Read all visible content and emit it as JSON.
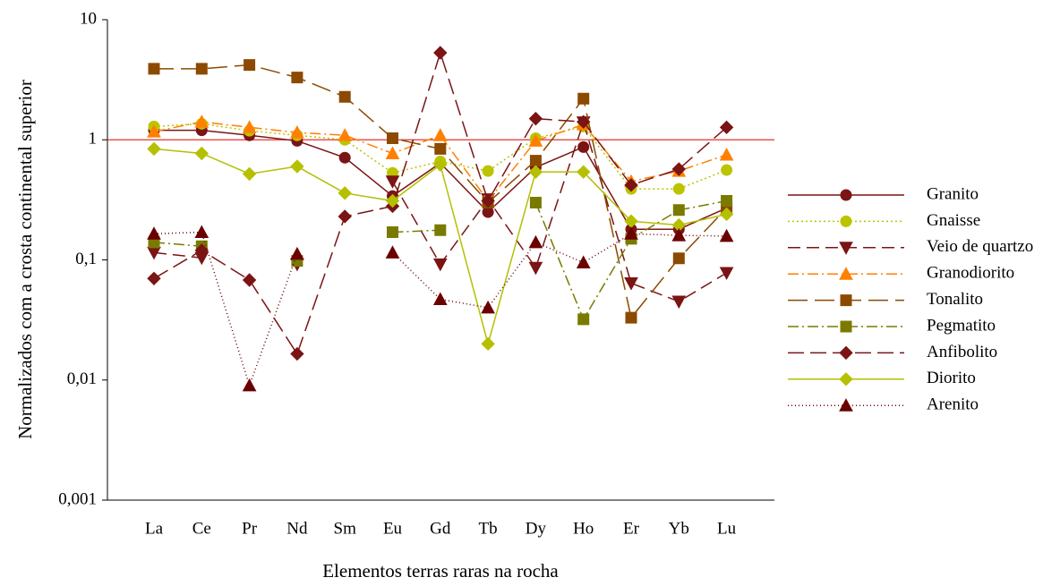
{
  "chart_data": {
    "type": "line",
    "xlabel": "Elementos terras raras na rocha",
    "ylabel": "Normalizados com a crosta continental superior",
    "categories": [
      "La",
      "Ce",
      "Pr",
      "Nd",
      "Sm",
      "Eu",
      "Gd",
      "Tb",
      "Dy",
      "Ho",
      "Er",
      "Yb",
      "Lu"
    ],
    "log_y": true,
    "ylim": [
      0.001,
      10
    ],
    "yticks": [
      {
        "value": 0.001,
        "label": "0,001"
      },
      {
        "value": 0.01,
        "label": "0,01"
      },
      {
        "value": 0.1,
        "label": "0,1"
      },
      1,
      10
    ],
    "reference_line": {
      "value": 1,
      "color": "#e8302c"
    },
    "legend": "right",
    "series": [
      {
        "name": "Granito",
        "color": "#7b1414",
        "marker": "circle",
        "dash": "none",
        "values": [
          1.2,
          1.2,
          1.09,
          0.98,
          0.71,
          0.34,
          0.64,
          0.25,
          0.59,
          0.87,
          0.18,
          0.18,
          0.27
        ]
      },
      {
        "name": "Gnaisse",
        "color": "#bcc400",
        "marker": "circle",
        "dash": "2,3",
        "values": [
          1.29,
          1.36,
          1.19,
          1.09,
          1.0,
          0.53,
          0.66,
          0.55,
          1.03,
          1.29,
          0.39,
          0.39,
          0.56
        ]
      },
      {
        "name": "Veio de quartzo",
        "color": "#7b1414",
        "marker": "triangle-down",
        "dash": "14,7",
        "values": [
          0.115,
          0.104,
          null,
          0.092,
          null,
          0.45,
          0.092,
          0.32,
          0.086,
          1.4,
          0.064,
          0.045,
          0.078
        ]
      },
      {
        "name": "Granodiorito",
        "color": "#ff8000",
        "marker": "triangle-up",
        "dash": "12,4,2,4",
        "values": [
          1.17,
          1.41,
          1.27,
          1.15,
          1.09,
          0.77,
          1.09,
          0.31,
          0.98,
          1.34,
          0.45,
          0.55,
          0.75
        ]
      },
      {
        "name": "Tonalito",
        "color": "#8b4a00",
        "marker": "square",
        "dash": "22,8",
        "values": [
          3.9,
          3.9,
          4.2,
          3.3,
          2.28,
          1.03,
          0.84,
          0.3,
          0.67,
          2.2,
          0.033,
          0.103,
          0.27
        ]
      },
      {
        "name": "Pegmatito",
        "color": "#7a7a00",
        "marker": "square",
        "dash": "12,4,2,4",
        "values": [
          0.14,
          0.13,
          null,
          0.098,
          null,
          0.17,
          0.177,
          null,
          0.3,
          0.032,
          0.15,
          0.26,
          0.31
        ]
      },
      {
        "name": "Anfibolito",
        "color": "#7b1414",
        "marker": "diamond",
        "dash": "18,7",
        "values": [
          0.07,
          0.12,
          0.068,
          0.0165,
          0.23,
          0.28,
          5.3,
          0.31,
          1.5,
          1.41,
          0.42,
          0.57,
          1.27
        ]
      },
      {
        "name": "Diorito",
        "color": "#b4c000",
        "marker": "diamond",
        "dash": "none",
        "values": [
          0.84,
          0.77,
          0.52,
          0.6,
          0.36,
          0.31,
          0.62,
          0.02,
          0.54,
          0.54,
          0.21,
          0.195,
          0.24
        ]
      },
      {
        "name": "Arenito",
        "color": "#6b0000",
        "marker": "triangle-up",
        "dash": "1,3",
        "values": [
          0.165,
          0.17,
          0.009,
          0.112,
          null,
          0.115,
          0.047,
          0.04,
          0.14,
          0.095,
          0.165,
          0.16,
          0.158
        ]
      }
    ]
  }
}
